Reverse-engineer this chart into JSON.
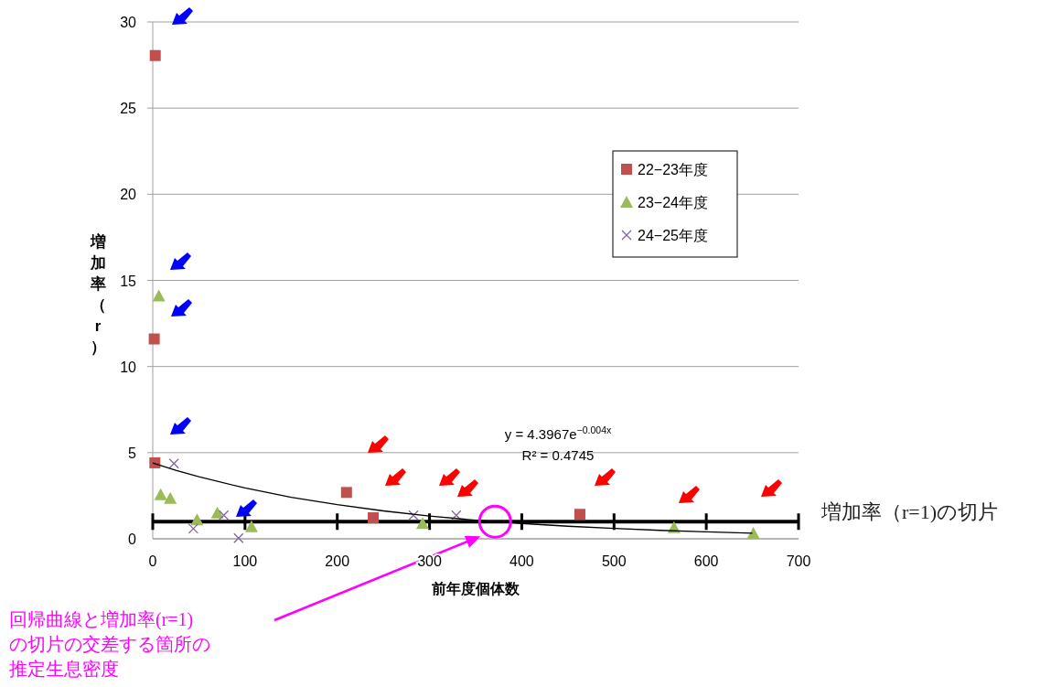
{
  "chart_data": {
    "type": "scatter",
    "xlabel": "前年度個体数",
    "ylabel": "増加率（r）",
    "xlim": [
      0,
      700
    ],
    "xticks": [
      0,
      100,
      200,
      300,
      400,
      500,
      600,
      700
    ],
    "ylim": [
      0,
      30
    ],
    "yticks": [
      0,
      5,
      10,
      15,
      20,
      25,
      30
    ],
    "grid": "y",
    "legend": "top right",
    "series": [
      {
        "name": "22−23年度",
        "color": "#c0504d",
        "marker": "square",
        "x": [
          2.7,
          1.6,
          2.3,
          210,
          239,
          463
        ],
        "values": [
          28.05,
          11.6,
          4.41,
          2.69,
          1.22,
          1.42
        ]
      },
      {
        "name": "23−24年度",
        "color": "#9bbb59",
        "marker": "triangle",
        "x": [
          6.6,
          8.6,
          19,
          48,
          70,
          107,
          292.5,
          565,
          651
        ],
        "values": [
          14.1,
          2.56,
          2.35,
          1.1,
          1.5,
          0.7,
          0.89,
          0.65,
          0.32
        ]
      },
      {
        "name": "24−25年度",
        "color": "#8064a2",
        "marker": "cross",
        "x": [
          23,
          44,
          77,
          93,
          282.6,
          329
        ],
        "values": [
          4.37,
          0.59,
          1.37,
          0.04,
          1.37,
          1.37
        ]
      },
      {
        "type": "line",
        "color": "#000000",
        "marker": "none",
        "x": [
          0,
          25,
          50,
          100,
          150,
          200,
          250,
          300,
          350,
          400,
          450,
          500,
          550,
          600,
          650
        ],
        "values": [
          4.4,
          3.98,
          3.6,
          2.95,
          2.41,
          1.98,
          1.62,
          1.32,
          1.08,
          0.89,
          0.73,
          0.6,
          0.49,
          0.4,
          0.33
        ]
      }
    ],
    "ref_lines": [
      {
        "axis": "y",
        "value": 1,
        "label": "増加率（r=1)の切片",
        "color": "#000000"
      }
    ],
    "annotations": [
      "y = 4.3967e$^{−0.004x}$",
      "R² = 0.4745",
      "回帰曲線と増加率(r=1)の切片の交差する箇所の推定生息密度"
    ]
  }
}
